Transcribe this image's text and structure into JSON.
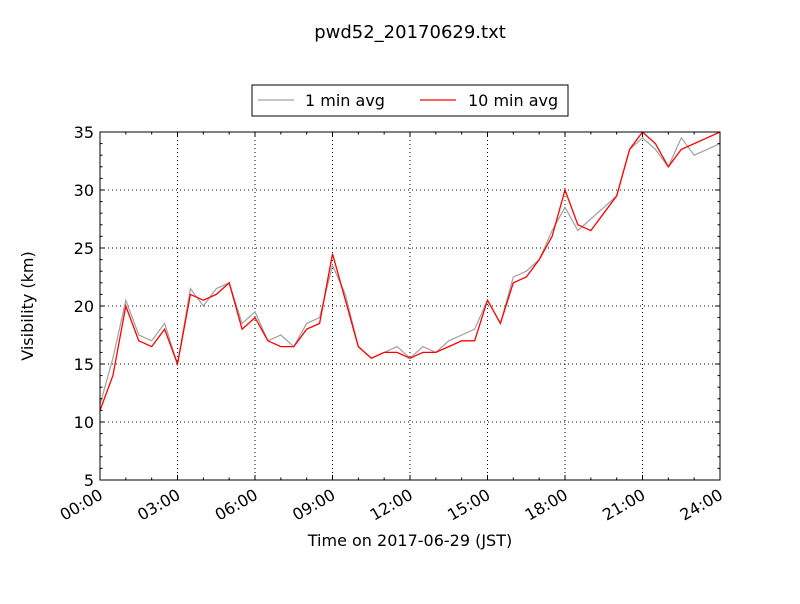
{
  "chart_data": {
    "type": "line",
    "title": "pwd52_20170629.txt",
    "xlabel": "Time on 2017-06-29 (JST)",
    "ylabel": "Visibility (km)",
    "xlim": [
      "00:00",
      "24:00"
    ],
    "ylim": [
      5,
      35
    ],
    "x_ticks": [
      "00:00",
      "03:00",
      "06:00",
      "09:00",
      "12:00",
      "15:00",
      "18:00",
      "21:00",
      "24:00"
    ],
    "y_ticks": [
      "5",
      "10",
      "15",
      "20",
      "25",
      "30",
      "35"
    ],
    "grid": true,
    "legend_placement": "top-center",
    "x": [
      "00:00",
      "00:30",
      "01:00",
      "01:30",
      "02:00",
      "02:30",
      "03:00",
      "03:30",
      "04:00",
      "04:30",
      "05:00",
      "05:30",
      "06:00",
      "06:30",
      "07:00",
      "07:30",
      "08:00",
      "08:30",
      "09:00",
      "09:30",
      "10:00",
      "10:30",
      "11:00",
      "11:30",
      "12:00",
      "12:30",
      "13:00",
      "13:30",
      "14:00",
      "14:30",
      "15:00",
      "15:30",
      "16:00",
      "16:30",
      "17:00",
      "17:30",
      "18:00",
      "18:30",
      "19:00",
      "19:30",
      "20:00",
      "20:30",
      "21:00",
      "21:30",
      "22:00",
      "22:30",
      "23:00",
      "23:30",
      "24:00"
    ],
    "series": [
      {
        "name": "1 min avg",
        "color": "#a0a0a0",
        "values": [
          11.5,
          15.5,
          20.5,
          17.5,
          17.0,
          18.5,
          15.0,
          21.5,
          20.0,
          21.5,
          22.0,
          18.5,
          19.5,
          17.0,
          17.5,
          16.5,
          18.5,
          19.0,
          23.5,
          21.0,
          16.5,
          15.5,
          16.0,
          16.5,
          15.5,
          16.5,
          16.0,
          17.0,
          17.5,
          18.0,
          20.5,
          18.5,
          22.5,
          23.0,
          24.0,
          26.5,
          28.5,
          26.5,
          27.5,
          28.5,
          29.5,
          33.5,
          34.5,
          33.5,
          32.0,
          34.5,
          33.0,
          33.5,
          34.0
        ]
      },
      {
        "name": "10 min avg",
        "color": "#ff0000",
        "values": [
          11.0,
          14.0,
          20.0,
          17.0,
          16.5,
          18.0,
          15.0,
          21.0,
          20.5,
          21.0,
          22.0,
          18.0,
          19.0,
          17.0,
          16.5,
          16.5,
          18.0,
          18.5,
          24.5,
          20.5,
          16.5,
          15.5,
          16.0,
          16.0,
          15.5,
          16.0,
          16.0,
          16.5,
          17.0,
          17.0,
          20.5,
          18.5,
          22.0,
          22.5,
          24.0,
          26.0,
          30.0,
          27.0,
          26.5,
          28.0,
          29.5,
          33.5,
          35.0,
          34.0,
          32.0,
          33.5,
          34.0,
          34.5,
          35.0
        ]
      }
    ]
  }
}
